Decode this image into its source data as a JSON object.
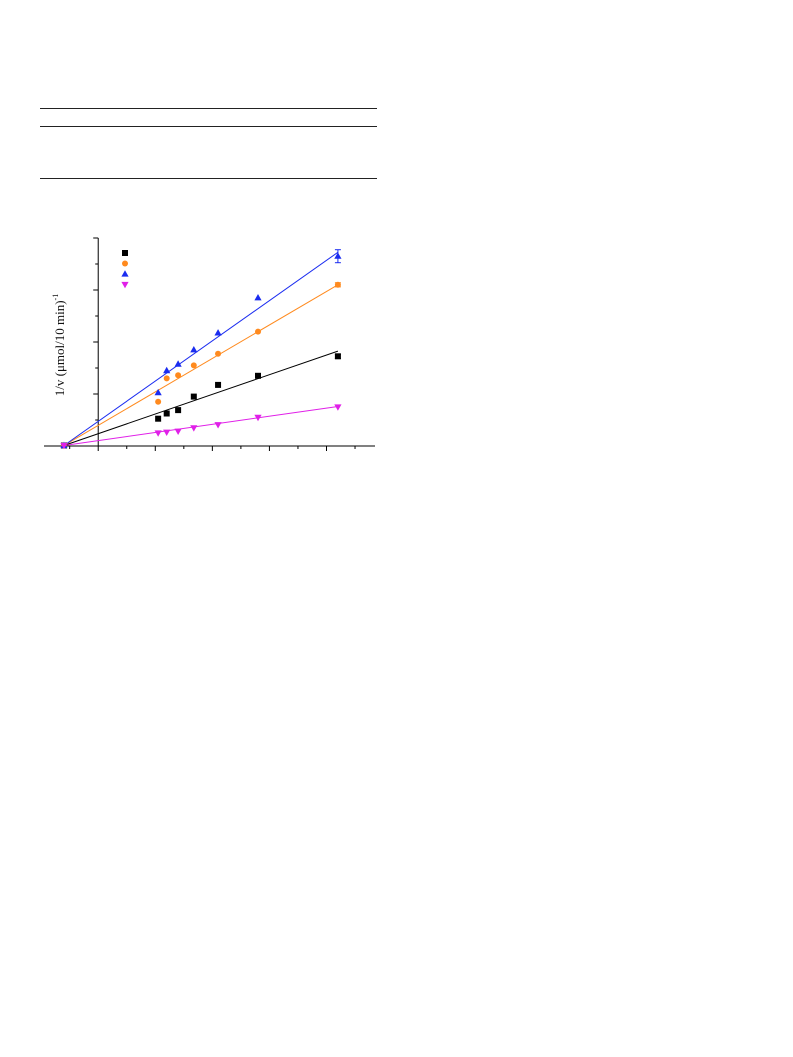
{
  "chart_data": {
    "type": "scatter",
    "title": "",
    "xlabel": "",
    "ylabel": "1/v (μmol/10 min)",
    "ylabel_exponent": "-1",
    "xlim": [
      -1.9,
      9.7
    ],
    "ylim": [
      0,
      8
    ],
    "grid": false,
    "legend": "top-left",
    "fit_lines": true,
    "series": [
      {
        "color": "#000000",
        "marker": "square",
        "x": [
          -1.2,
          2.1,
          2.4,
          2.8,
          3.35,
          4.2,
          5.6,
          8.4
        ],
        "y": [
          0.02,
          1.05,
          1.25,
          1.38,
          1.9,
          2.35,
          2.7,
          3.45
        ],
        "err": [
          0,
          0,
          0,
          0,
          0,
          0,
          0,
          0.08
        ],
        "fit_y": [
          0.02,
          3.65
        ]
      },
      {
        "color": "#ff8a1e",
        "marker": "circle",
        "x": [
          -1.2,
          2.1,
          2.4,
          2.8,
          3.35,
          4.2,
          5.6,
          8.4
        ],
        "y": [
          0.02,
          1.7,
          2.6,
          2.72,
          3.1,
          3.55,
          4.4,
          6.2
        ],
        "err": [
          0,
          0,
          0,
          0,
          0,
          0,
          0,
          0.08
        ],
        "fit_y": [
          0.02,
          6.2
        ]
      },
      {
        "color": "#1a2cf0",
        "marker": "triangle-up",
        "x": [
          -1.2,
          2.1,
          2.4,
          2.8,
          3.35,
          4.2,
          5.6,
          8.4
        ],
        "y": [
          0.02,
          2.05,
          2.9,
          3.15,
          3.7,
          4.35,
          5.7,
          7.3
        ],
        "err": [
          0,
          0,
          0,
          0,
          0,
          0,
          0,
          0.25
        ],
        "fit_y": [
          0.02,
          7.45
        ]
      },
      {
        "color": "#e020e8",
        "marker": "triangle-down",
        "x": [
          -1.2,
          2.1,
          2.4,
          2.8,
          3.35,
          4.2,
          5.6,
          8.4
        ],
        "y": [
          0.02,
          0.5,
          0.53,
          0.57,
          0.7,
          0.82,
          1.1,
          1.5
        ],
        "err": [
          0,
          0,
          0,
          0,
          0,
          0,
          0,
          0
        ],
        "fit_y": [
          0.02,
          1.52
        ]
      }
    ]
  }
}
